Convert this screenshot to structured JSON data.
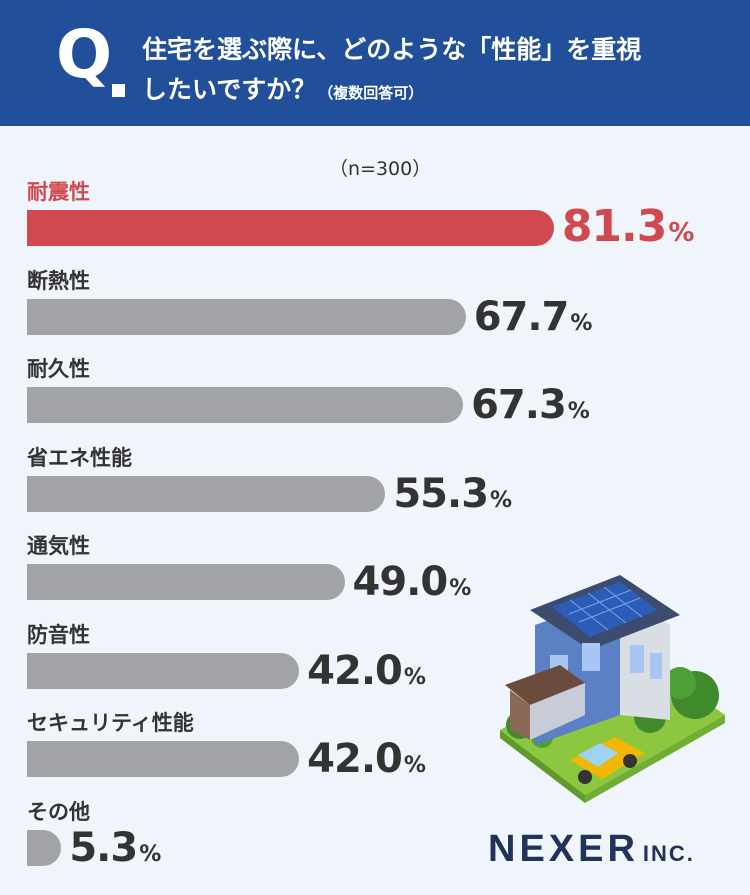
{
  "header": {
    "q_letter": "Q",
    "line1": "住宅を選ぶ際に、どのような「性能」を重視",
    "line2": "したいですか？",
    "note": "（複数回答可）"
  },
  "sample": "（n=300）",
  "colors": {
    "header_bg": "#214f99",
    "highlight": "#d0494e",
    "bar": "#a2a3a6",
    "background": "#f0f4fb"
  },
  "chart_data": {
    "type": "bar",
    "orientation": "horizontal",
    "unit": "%",
    "categories": [
      "耐震性",
      "断熱性",
      "耐久性",
      "省エネ性能",
      "通気性",
      "防音性",
      "セキュリティ性能",
      "その他"
    ],
    "values": [
      81.3,
      67.7,
      67.3,
      55.3,
      49.0,
      42.0,
      42.0,
      5.3
    ],
    "value_labels": [
      "81.3",
      "67.7",
      "67.3",
      "55.3",
      "49.0",
      "42.0",
      "42.0",
      "5.3"
    ],
    "highlight_index": 0
  },
  "logo": {
    "main": "NEXER",
    "suffix": "INC."
  },
  "illustration": "house-icon"
}
